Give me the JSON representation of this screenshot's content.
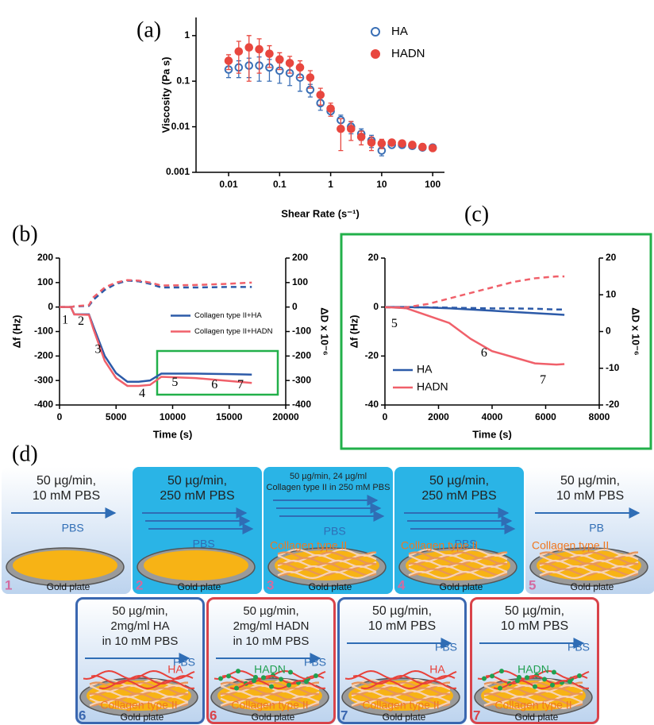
{
  "chart_data": [
    {
      "type": "scatter",
      "label": "(a)",
      "xlabel": "Shear Rate  (s⁻¹)",
      "ylabel": "Viscosity (Pa s)",
      "xscale": "log",
      "yscale": "log",
      "x": [
        0.01,
        0.0158,
        0.0251,
        0.0398,
        0.0631,
        0.1,
        0.158,
        0.251,
        0.398,
        0.631,
        1,
        1.58,
        2.51,
        3.98,
        6.31,
        10,
        15.8,
        25.1,
        39.8,
        63.1,
        100
      ],
      "xlim": [
        0.0023,
        170
      ],
      "xticks": [
        0.01,
        0.1,
        1,
        10,
        100
      ],
      "ylim": [
        0.001,
        2.5
      ],
      "yticks": [
        0.001,
        0.01,
        0.1,
        1
      ],
      "legend": "upper right",
      "series": [
        {
          "name": "HA",
          "color": "#3a6fb5",
          "marker": "open",
          "values": [
            0.18,
            0.2,
            0.22,
            0.22,
            0.2,
            0.17,
            0.15,
            0.12,
            0.065,
            0.033,
            0.022,
            0.014,
            0.01,
            0.007,
            0.005,
            0.003,
            0.004,
            0.004,
            0.0038,
            0.0035,
            0.0035
          ],
          "errors": [
            0.06,
            0.08,
            0.1,
            0.12,
            0.1,
            0.08,
            0.07,
            0.06,
            0.02,
            0.01,
            0.005,
            0.004,
            0.003,
            0.002,
            0.0015,
            0.0007,
            0.0005,
            0.0004,
            0.0003,
            0.0003,
            0.0003
          ]
        },
        {
          "name": "HADN",
          "color": "#e8473f",
          "marker": "filled",
          "values": [
            0.28,
            0.45,
            0.55,
            0.5,
            0.4,
            0.3,
            0.25,
            0.2,
            0.12,
            0.05,
            0.025,
            0.009,
            0.009,
            0.006,
            0.0045,
            0.0043,
            0.0045,
            0.0043,
            0.004,
            0.0036,
            0.0034
          ],
          "errors": [
            0.1,
            0.3,
            0.45,
            0.35,
            0.2,
            0.12,
            0.1,
            0.08,
            0.05,
            0.02,
            0.008,
            0.006,
            0.004,
            0.002,
            0.0015,
            0.001,
            0.0005,
            0.0005,
            0.0004,
            0.0003,
            0.0003
          ]
        }
      ]
    },
    {
      "type": "line",
      "label": "(b)",
      "xlabel": "Time (s)",
      "ylabel": "Δf (Hz)",
      "y2label": "ΔD x 10⁻⁶",
      "x": [
        0,
        1000,
        1300,
        2600,
        3000,
        4000,
        5000,
        6000,
        7000,
        8000,
        9000,
        12000,
        15000,
        17000
      ],
      "xlim": [
        0,
        20000
      ],
      "xticks": [
        0,
        5000,
        10000,
        15000,
        20000
      ],
      "ylim": [
        -400,
        200
      ],
      "yticks": [
        -400,
        -300,
        -200,
        -100,
        0,
        100,
        200
      ],
      "y2lim": [
        -400,
        200
      ],
      "y2ticks": [
        -400,
        -300,
        -200,
        -100,
        0,
        100,
        200
      ],
      "legend": "center right",
      "series": [
        {
          "name": "Collagen type II+HA",
          "color": "#2c5aa8",
          "values": [
            0,
            0,
            -30,
            -30,
            -80,
            -200,
            -270,
            -305,
            -305,
            -300,
            -272,
            -272,
            -274,
            -276
          ]
        },
        {
          "name": "Collagen type II+HADN",
          "color": "#f0606a",
          "values": [
            0,
            0,
            -30,
            -32,
            -90,
            -220,
            -290,
            -322,
            -322,
            -318,
            -285,
            -290,
            -302,
            -310
          ]
        },
        {
          "color": "#2c5aa8",
          "dash": true,
          "axis": "y2",
          "values": [
            0,
            0,
            2,
            5,
            30,
            70,
            95,
            108,
            105,
            95,
            80,
            80,
            82,
            82
          ]
        },
        {
          "color": "#f0606a",
          "dash": true,
          "axis": "y2",
          "values": [
            0,
            0,
            3,
            8,
            40,
            80,
            100,
            110,
            108,
            100,
            88,
            90,
            95,
            100
          ]
        }
      ],
      "annotations": [
        {
          "text": "1",
          "x": 500,
          "y": -55
        },
        {
          "text": "2",
          "x": 1900,
          "y": -60
        },
        {
          "text": "3",
          "x": 3400,
          "y": -175
        },
        {
          "text": "4",
          "x": 7300,
          "y": -355
        },
        {
          "text": "5",
          "x": 10200,
          "y": -310
        },
        {
          "text": "6",
          "x": 13700,
          "y": -320
        },
        {
          "text": "7",
          "x": 16000,
          "y": -320
        }
      ]
    },
    {
      "type": "line",
      "label": "(c)",
      "xlabel": "Time (s)",
      "ylabel": "Δf (Hz)",
      "y2label": "ΔD x 10⁻⁶",
      "x": [
        0,
        800,
        1600,
        2400,
        3200,
        4000,
        4800,
        5600,
        6400,
        6700
      ],
      "xlim": [
        0,
        8000
      ],
      "xticks": [
        0,
        2000,
        4000,
        6000,
        8000
      ],
      "ylim": [
        -40,
        20
      ],
      "yticks": [
        -40,
        -20,
        0,
        20
      ],
      "y2lim": [
        -20,
        20
      ],
      "y2ticks": [
        -20,
        -10,
        0,
        10,
        20
      ],
      "legend": "lower left",
      "series": [
        {
          "name": "HA",
          "color": "#2c5aa8",
          "values": [
            0,
            0,
            -0.2,
            -0.5,
            -1,
            -1.5,
            -2,
            -2.5,
            -3,
            -3.2
          ]
        },
        {
          "name": "HADN",
          "color": "#f0606a",
          "values": [
            0,
            -0.5,
            -3.5,
            -6.5,
            -13,
            -18,
            -20.5,
            -23,
            -23.5,
            -23.3
          ]
        },
        {
          "color": "#2c5aa8",
          "dash": true,
          "axis": "y2",
          "values": [
            6.6,
            6.6,
            6.6,
            6.5,
            6.4,
            6.3,
            6.3,
            6.2,
            6,
            6
          ]
        },
        {
          "color": "#f0606a",
          "dash": true,
          "axis": "y2",
          "values": [
            6.6,
            6.6,
            7.5,
            9,
            10.5,
            12,
            13.5,
            14.5,
            15,
            15
          ]
        }
      ],
      "annotations": [
        {
          "text": "5",
          "x": 350,
          "y": -7
        },
        {
          "text": "6",
          "x": 3700,
          "y": -19
        },
        {
          "text": "7",
          "x": 5900,
          "y": -30
        }
      ]
    }
  ],
  "diagram": {
    "label": "(d)",
    "panels": [
      {
        "number": "1",
        "number_color": "#d36ba0",
        "background": "#dce8f5",
        "lines": [
          "50 µg/min,",
          "10 mM PBS"
        ],
        "flow": "PBS",
        "plate": "Gold plate"
      },
      {
        "number": "2",
        "number_color": "#d36ba0",
        "background": "#2ab4e6",
        "lines": [
          "50 µg/min,",
          "250 mM PBS"
        ],
        "flow": "PBS",
        "plate": "Gold plate"
      },
      {
        "number": "3",
        "number_color": "#d36ba0",
        "background": "#2ab4e6",
        "lines": [
          "50 µg/min, 24 µg/ml",
          "Collagen type II in 250 mM PBS"
        ],
        "flow": "PBS",
        "layer": "Collagen type II",
        "plate": "Gold plate"
      },
      {
        "number": "4",
        "number_color": "#d36ba0",
        "background": "#2ab4e6",
        "lines": [
          "50 µg/min,",
          "250 mM PBS"
        ],
        "flow": "PBS",
        "layer": "Collagen type II",
        "plate": "Gold plate"
      },
      {
        "number": "5",
        "number_color": "#d36ba0",
        "background": "#dce8f5",
        "lines": [
          "50 µg/min,",
          "10 mM PBS"
        ],
        "flow": "PB",
        "layer": "Collagen type II",
        "plate": "Gold plate"
      },
      {
        "number": "6",
        "number_color": "#3a67b0",
        "border": "#3a67b0",
        "background": "#dce8f5",
        "lines": [
          "50 µg/min,",
          "2mg/ml HA",
          "in 10 mM PBS"
        ],
        "flow": "PBS",
        "polymer": "HA",
        "polymer_color": "#e8413a",
        "layer": "Collagen type II",
        "plate": "Gold plate"
      },
      {
        "number": "6",
        "number_color": "#d9434a",
        "border": "#d9434a",
        "background": "#dce8f5",
        "lines": [
          "50 µg/min,",
          "2mg/ml HADN",
          "in 10 mM PBS"
        ],
        "flow": "PBS",
        "polymer": "HADN",
        "polymer_color": "#20a050",
        "layer": "Collagen type II",
        "plate": "Gold plate"
      },
      {
        "number": "7",
        "number_color": "#3a67b0",
        "border": "#3a67b0",
        "background": "#dce8f5",
        "lines": [
          "50 µg/min,",
          "10 mM PBS"
        ],
        "flow": "PBS",
        "polymer": "HA",
        "polymer_color": "#e8413a",
        "layer": "Collagen type II",
        "plate": "Gold plate"
      },
      {
        "number": "7",
        "number_color": "#d9434a",
        "border": "#d9434a",
        "background": "#dce8f5",
        "lines": [
          "50 µg/min,",
          "10 mM PBS"
        ],
        "flow": "PBS",
        "polymer": "HADN",
        "polymer_color": "#20a050",
        "layer": "Collagen type II",
        "plate": "Gold plate"
      }
    ]
  }
}
